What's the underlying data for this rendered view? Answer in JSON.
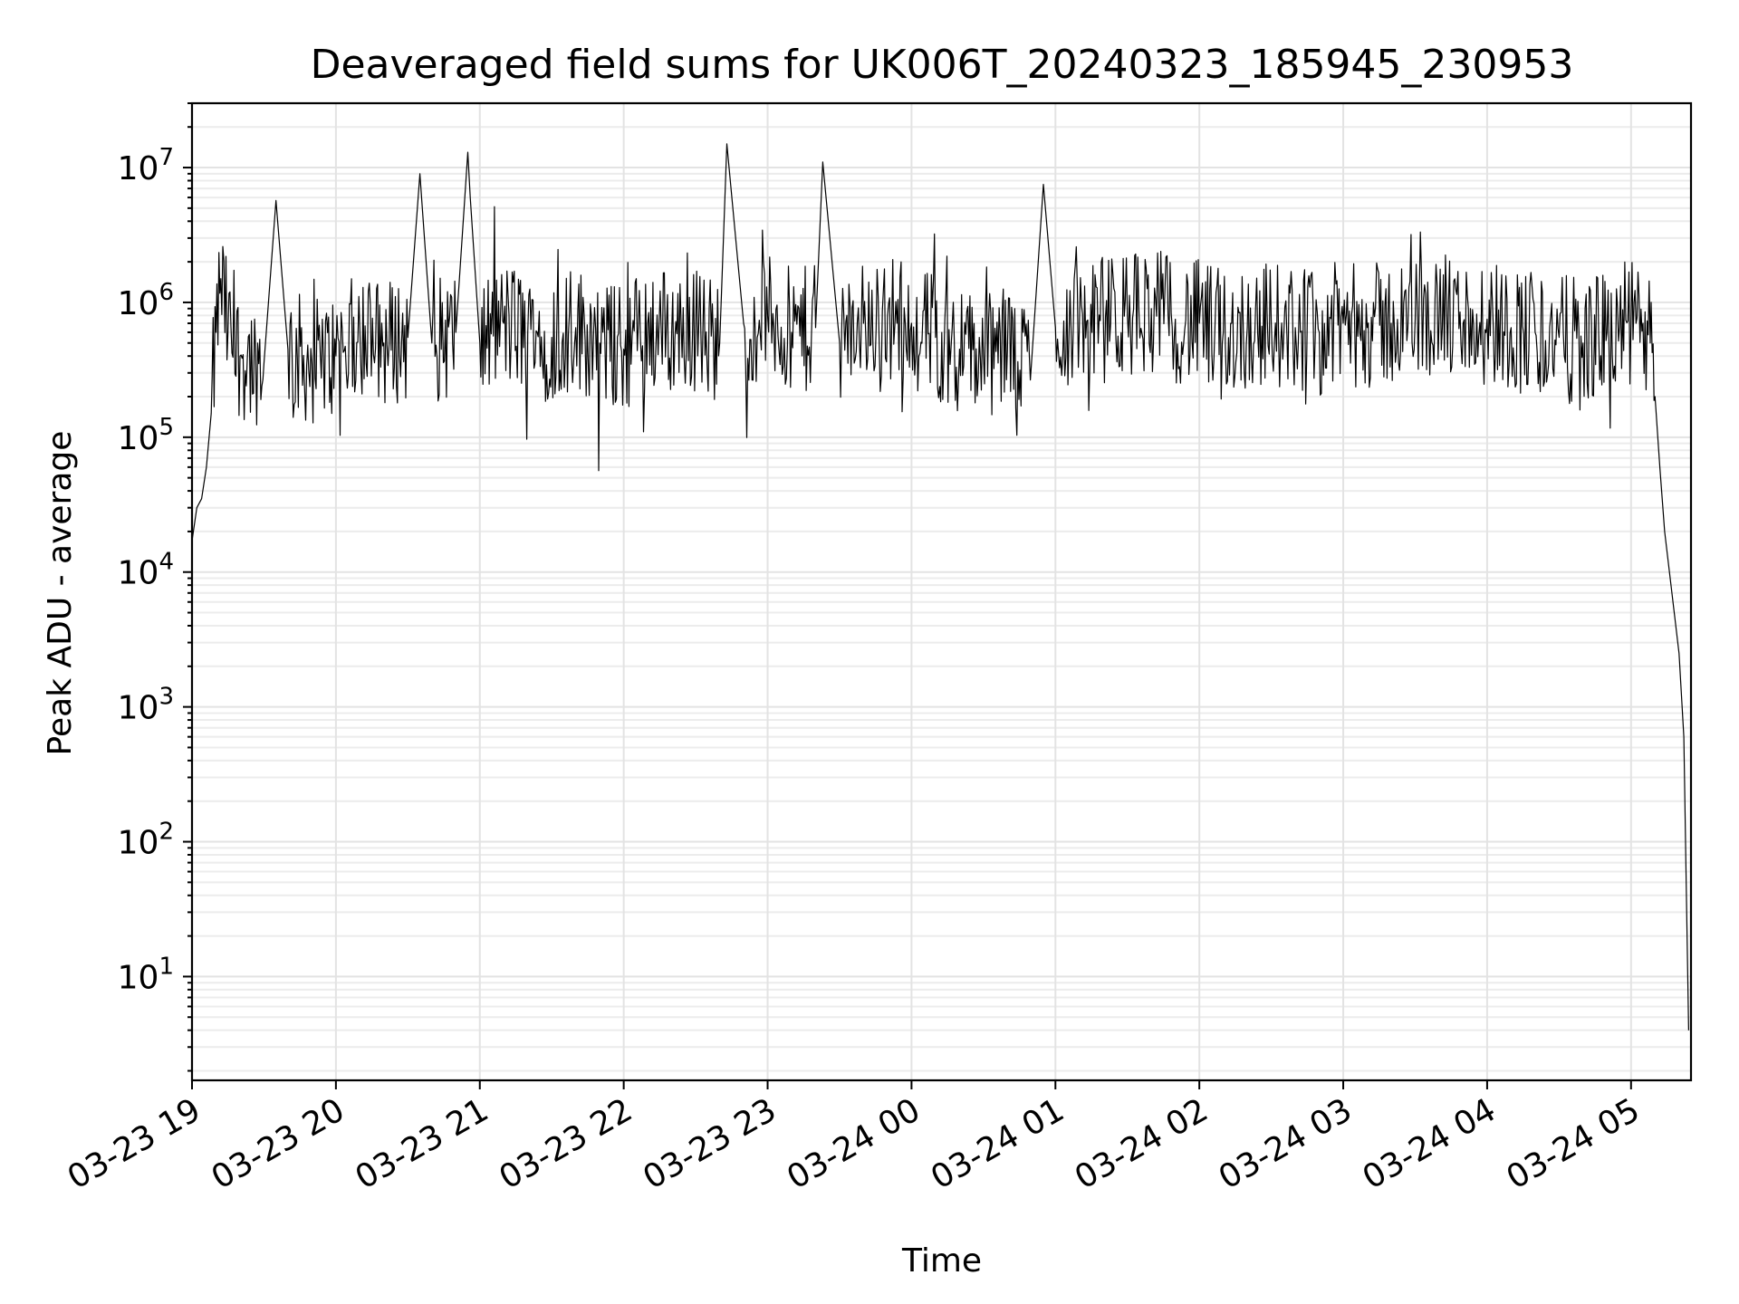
{
  "chart_data": {
    "type": "line",
    "title": "Deaveraged field sums for UK006T_20240323_185945_230953",
    "xlabel": "Time",
    "ylabel": "Peak ADU - average",
    "yscale": "log",
    "ylim": [
      1.7,
      30000000
    ],
    "xlim": [
      "2024-03-23 19:00",
      "2024-03-24 05:25"
    ],
    "grid": true,
    "x_ticks": [
      "03-23 19",
      "03-23 20",
      "03-23 21",
      "03-23 22",
      "03-23 23",
      "03-24 00",
      "03-24 01",
      "03-24 02",
      "03-24 03",
      "03-24 04",
      "03-24 05"
    ],
    "y_ticks": [
      {
        "base": "10",
        "exp": "1"
      },
      {
        "base": "10",
        "exp": "2"
      },
      {
        "base": "10",
        "exp": "3"
      },
      {
        "base": "10",
        "exp": "4"
      },
      {
        "base": "10",
        "exp": "5"
      },
      {
        "base": "10",
        "exp": "6"
      },
      {
        "base": "10",
        "exp": "7"
      }
    ],
    "series": [
      {
        "color": "#000000",
        "x": [
          "2024-03-23 19:00",
          "2024-03-23 19:02",
          "2024-03-23 19:04",
          "2024-03-23 19:06",
          "2024-03-23 19:08",
          "2024-03-23 19:10",
          "2024-03-23 19:12",
          "2024-03-23 19:15",
          "2024-03-23 19:20",
          "2024-03-23 19:30",
          "2024-03-23 19:35",
          "2024-03-23 19:40",
          "2024-03-23 19:50",
          "2024-03-23 20:00",
          "2024-03-23 20:10",
          "2024-03-23 20:20",
          "2024-03-23 20:30",
          "2024-03-23 20:35",
          "2024-03-23 20:40",
          "2024-03-23 20:50",
          "2024-03-23 20:55",
          "2024-03-23 20:56",
          "2024-03-23 21:00",
          "2024-03-23 21:10",
          "2024-03-23 21:20",
          "2024-03-23 21:30",
          "2024-03-23 21:40",
          "2024-03-23 21:50",
          "2024-03-23 22:00",
          "2024-03-23 22:10",
          "2024-03-23 22:20",
          "2024-03-23 22:30",
          "2024-03-23 22:40",
          "2024-03-23 22:43",
          "2024-03-23 22:50",
          "2024-03-23 23:00",
          "2024-03-23 23:10",
          "2024-03-23 23:20",
          "2024-03-23 23:23",
          "2024-03-23 23:30",
          "2024-03-23 23:40",
          "2024-03-23 23:50",
          "2024-03-24 00:00",
          "2024-03-24 00:10",
          "2024-03-24 00:20",
          "2024-03-24 00:30",
          "2024-03-24 00:40",
          "2024-03-24 00:50",
          "2024-03-24 00:55",
          "2024-03-24 01:00",
          "2024-03-24 01:10",
          "2024-03-24 01:20",
          "2024-03-24 01:30",
          "2024-03-24 01:40",
          "2024-03-24 01:50",
          "2024-03-24 02:00",
          "2024-03-24 02:10",
          "2024-03-24 02:20",
          "2024-03-24 02:30",
          "2024-03-24 02:40",
          "2024-03-24 02:50",
          "2024-03-24 03:00",
          "2024-03-24 03:10",
          "2024-03-24 03:20",
          "2024-03-24 03:30",
          "2024-03-24 03:40",
          "2024-03-24 03:50",
          "2024-03-24 04:00",
          "2024-03-24 04:10",
          "2024-03-24 04:20",
          "2024-03-24 04:30",
          "2024-03-24 04:40",
          "2024-03-24 04:50",
          "2024-03-24 05:00",
          "2024-03-24 05:05",
          "2024-03-24 05:08",
          "2024-03-24 05:10",
          "2024-03-24 05:12",
          "2024-03-24 05:14",
          "2024-03-24 05:16",
          "2024-03-24 05:18",
          "2024-03-24 05:20",
          "2024-03-24 05:22",
          "2024-03-24 05:23",
          "2024-03-24 05:24"
        ],
        "y": [
          17000,
          30000,
          35000,
          60000,
          150000,
          600000,
          1500000,
          600000,
          400000,
          350000,
          5700000,
          450000,
          350000,
          400000,
          600000,
          500000,
          550000,
          9000000,
          500000,
          600000,
          13000000,
          6000000,
          500000,
          700000,
          600000,
          550000,
          650000,
          500000,
          450000,
          700000,
          600000,
          650000,
          500000,
          15000000,
          700000,
          800000,
          600000,
          650000,
          11000000,
          500000,
          700000,
          800000,
          700000,
          550000,
          450000,
          400000,
          450000,
          350000,
          7500000,
          650000,
          700000,
          750000,
          800000,
          900000,
          750000,
          700000,
          600000,
          650000,
          700000,
          650000,
          600000,
          700000,
          650000,
          700000,
          750000,
          800000,
          700000,
          750000,
          650000,
          600000,
          550000,
          500000,
          600000,
          700000,
          700000,
          500000,
          200000,
          60000,
          20000,
          10000,
          5000,
          2500,
          600,
          50,
          4
        ]
      }
    ]
  }
}
